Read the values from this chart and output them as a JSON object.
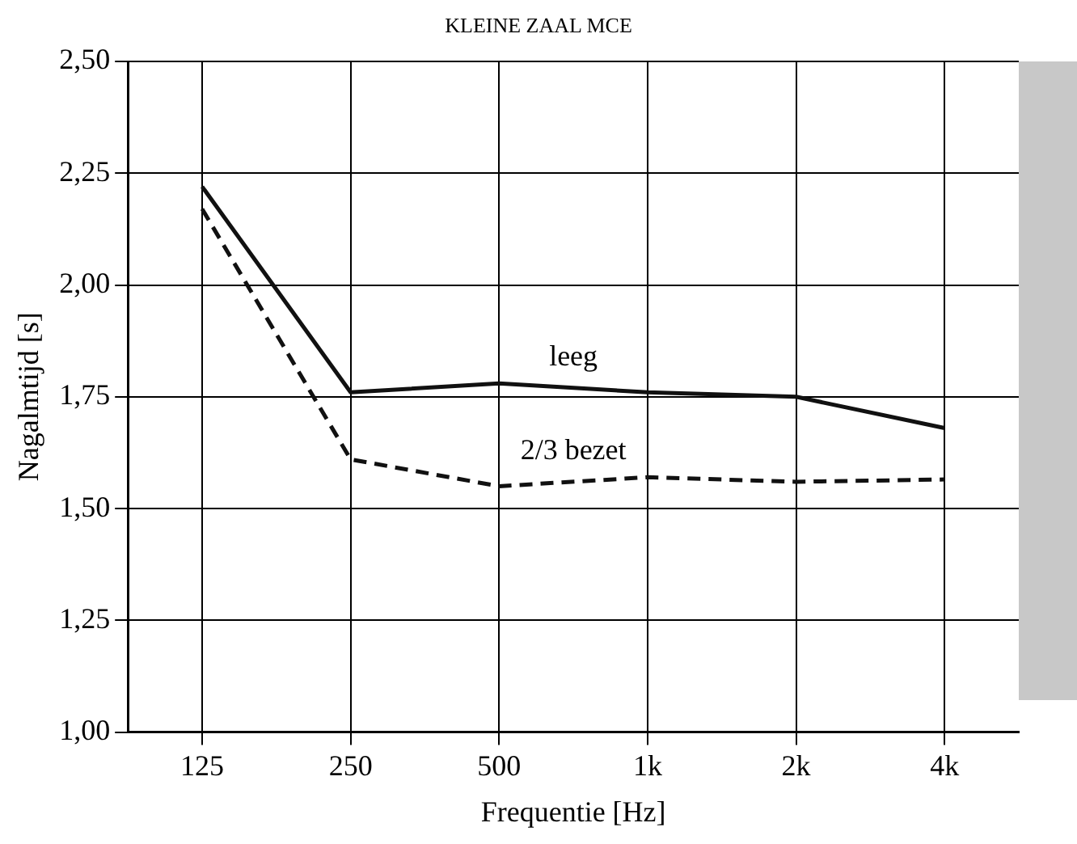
{
  "chart_data": {
    "type": "line",
    "title": "KLEINE ZAAL MCE",
    "xlabel": "Frequentie [Hz]",
    "ylabel": "Nagalmtijd [s]",
    "categories": [
      "125",
      "250",
      "500",
      "1k",
      "2k",
      "4k"
    ],
    "series": [
      {
        "name": "leeg",
        "color": "#111111",
        "line_style": "solid",
        "values": [
          2.22,
          1.76,
          1.78,
          1.76,
          1.75,
          1.68
        ]
      },
      {
        "name": "2/3 bezet",
        "color": "#111111",
        "line_style": "dashed",
        "values": [
          2.17,
          1.61,
          1.55,
          1.57,
          1.56,
          1.565
        ]
      }
    ],
    "ylim": [
      1,
      2.5
    ],
    "yticks": [
      {
        "value": 1,
        "label": "1,00"
      },
      {
        "value": 1.25,
        "label": "1,25"
      },
      {
        "value": 1.5,
        "label": "1,50"
      },
      {
        "value": 1.75,
        "label": "1,75"
      },
      {
        "value": 2,
        "label": "2,00"
      },
      {
        "value": 2.25,
        "label": "2,25"
      },
      {
        "value": 2.5,
        "label": "2,50"
      }
    ],
    "grid": true,
    "legend": false,
    "marker": "none"
  }
}
